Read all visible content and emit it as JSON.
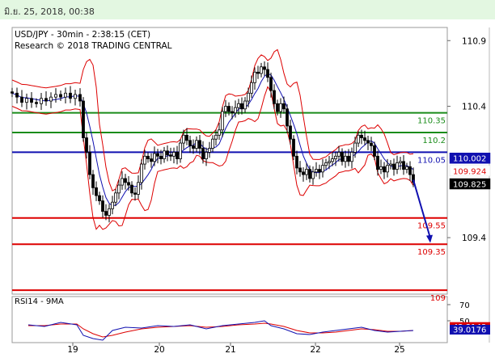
{
  "header": {
    "datetime": "มิ.ย. 25, 2018, 00:38"
  },
  "chart_data": {
    "type": "candlestick",
    "title": "USD/JPY - 30min - 2:38:15 (CET)",
    "subtitle": "Research © 2018 TRADING CENTRAL",
    "ylim": [
      108.97,
      111.0
    ],
    "yticks": [
      109.4,
      110.4,
      110.9
    ],
    "xticks": [
      "19",
      "20",
      "21",
      "22",
      "25"
    ],
    "levels": [
      {
        "value": 110.35,
        "label": "110.35",
        "color": "#1a8c1a"
      },
      {
        "value": 110.2,
        "label": "110.2",
        "color": "#1a8c1a"
      },
      {
        "value": 110.05,
        "label": "110.05",
        "color": "#1010b0"
      },
      {
        "value": 109.55,
        "label": "109.55",
        "color": "#dd0000"
      },
      {
        "value": 109.35,
        "label": "109.35",
        "color": "#dd0000"
      },
      {
        "value": 109.0,
        "label": "109",
        "color": "#dd0000"
      }
    ],
    "price_tags": [
      {
        "value": 110.002,
        "label": "110.002",
        "bg": "#1010b0",
        "fg": "#ffffff"
      },
      {
        "value": 109.924,
        "label": "109.924",
        "bg": "#ffffff",
        "fg": "#dd0000"
      },
      {
        "value": 109.825,
        "label": "109.825",
        "bg": "#000000",
        "fg": "#ffffff"
      }
    ],
    "close_series": [
      [
        0,
        110.5
      ],
      [
        6,
        110.47
      ],
      [
        12,
        110.43
      ],
      [
        18,
        110.46
      ],
      [
        24,
        110.43
      ],
      [
        30,
        110.42
      ],
      [
        36,
        110.46
      ],
      [
        42,
        110.44
      ],
      [
        48,
        110.47
      ],
      [
        54,
        110.49
      ],
      [
        60,
        110.47
      ],
      [
        66,
        110.5
      ],
      [
        72,
        110.46
      ],
      [
        78,
        110.49
      ],
      [
        84,
        110.44
      ],
      [
        88,
        110.16
      ],
      [
        92,
        110.05
      ],
      [
        96,
        109.88
      ],
      [
        100,
        109.78
      ],
      [
        104,
        109.72
      ],
      [
        108,
        109.68
      ],
      [
        112,
        109.6
      ],
      [
        116,
        109.57
      ],
      [
        120,
        109.62
      ],
      [
        124,
        109.67
      ],
      [
        128,
        109.74
      ],
      [
        132,
        109.8
      ],
      [
        136,
        109.85
      ],
      [
        140,
        109.82
      ],
      [
        144,
        109.8
      ],
      [
        148,
        109.74
      ],
      [
        152,
        109.73
      ],
      [
        156,
        109.82
      ],
      [
        160,
        109.96
      ],
      [
        164,
        110.02
      ],
      [
        168,
        110.0
      ],
      [
        172,
        109.98
      ],
      [
        176,
        110.04
      ],
      [
        180,
        110.02
      ],
      [
        184,
        110.0
      ],
      [
        188,
        110.06
      ],
      [
        192,
        110.03
      ],
      [
        196,
        110.02
      ],
      [
        200,
        110.05
      ],
      [
        204,
        110.0
      ],
      [
        208,
        110.12
      ],
      [
        212,
        110.18
      ],
      [
        216,
        110.14
      ],
      [
        220,
        110.1
      ],
      [
        224,
        110.08
      ],
      [
        228,
        110.14
      ],
      [
        232,
        110.08
      ],
      [
        236,
        110.0
      ],
      [
        240,
        110.05
      ],
      [
        244,
        110.08
      ],
      [
        248,
        110.15
      ],
      [
        252,
        110.18
      ],
      [
        256,
        110.22
      ],
      [
        260,
        110.36
      ],
      [
        264,
        110.4
      ],
      [
        268,
        110.36
      ],
      [
        272,
        110.35
      ],
      [
        276,
        110.39
      ],
      [
        280,
        110.42
      ],
      [
        284,
        110.38
      ],
      [
        288,
        110.44
      ],
      [
        292,
        110.5
      ],
      [
        296,
        110.58
      ],
      [
        300,
        110.66
      ],
      [
        304,
        110.65
      ],
      [
        308,
        110.7
      ],
      [
        312,
        110.68
      ],
      [
        316,
        110.62
      ],
      [
        320,
        110.52
      ],
      [
        324,
        110.42
      ],
      [
        328,
        110.36
      ],
      [
        332,
        110.42
      ],
      [
        336,
        110.38
      ],
      [
        340,
        110.25
      ],
      [
        344,
        110.15
      ],
      [
        348,
        110.02
      ],
      [
        352,
        109.93
      ],
      [
        356,
        109.9
      ],
      [
        360,
        109.88
      ],
      [
        364,
        109.92
      ],
      [
        368,
        109.85
      ],
      [
        372,
        109.9
      ],
      [
        376,
        109.92
      ],
      [
        380,
        109.9
      ],
      [
        384,
        109.95
      ],
      [
        388,
        109.97
      ],
      [
        392,
        109.98
      ],
      [
        396,
        110.0
      ],
      [
        400,
        110.02
      ],
      [
        404,
        110.05
      ],
      [
        408,
        109.98
      ],
      [
        412,
        110.02
      ],
      [
        416,
        109.98
      ],
      [
        420,
        110.05
      ],
      [
        424,
        110.12
      ],
      [
        428,
        110.18
      ],
      [
        432,
        110.16
      ],
      [
        436,
        110.14
      ],
      [
        440,
        110.12
      ],
      [
        444,
        110.1
      ],
      [
        448,
        110.02
      ],
      [
        452,
        109.92
      ],
      [
        456,
        109.94
      ],
      [
        460,
        109.9
      ],
      [
        464,
        109.95
      ],
      [
        468,
        109.96
      ],
      [
        472,
        109.92
      ],
      [
        476,
        109.97
      ],
      [
        480,
        109.98
      ],
      [
        484,
        109.92
      ],
      [
        488,
        109.94
      ],
      [
        492,
        109.88
      ],
      [
        496,
        109.82
      ]
    ],
    "forecast_arrow": {
      "from": [
        496,
        109.84
      ],
      "to": [
        517,
        109.36
      ]
    },
    "rsi": {
      "title": "RSI14 - 9MA",
      "ylim": [
        25,
        78
      ],
      "yticks": [
        50,
        70
      ],
      "tags": [
        {
          "value": 42.3143,
          "label": "42.3143",
          "bg": "#dd0000",
          "fg": "#ffffff"
        },
        {
          "value": 39.0176,
          "label": "39.0176",
          "bg": "#1010b0",
          "fg": "#ffffff"
        }
      ],
      "rsi_series": [
        [
          20,
          45
        ],
        [
          40,
          43
        ],
        [
          60,
          48
        ],
        [
          80,
          45
        ],
        [
          88,
          32
        ],
        [
          100,
          28
        ],
        [
          112,
          26
        ],
        [
          124,
          38
        ],
        [
          140,
          42
        ],
        [
          160,
          41
        ],
        [
          180,
          44
        ],
        [
          200,
          43
        ],
        [
          220,
          45
        ],
        [
          240,
          40
        ],
        [
          260,
          44
        ],
        [
          280,
          46
        ],
        [
          300,
          48
        ],
        [
          312,
          50
        ],
        [
          320,
          44
        ],
        [
          336,
          40
        ],
        [
          352,
          34
        ],
        [
          368,
          33
        ],
        [
          384,
          36
        ],
        [
          400,
          38
        ],
        [
          416,
          40
        ],
        [
          432,
          42
        ],
        [
          448,
          38
        ],
        [
          464,
          36
        ],
        [
          480,
          37
        ],
        [
          496,
          38
        ]
      ],
      "ma_series": [
        [
          20,
          44
        ],
        [
          40,
          44
        ],
        [
          60,
          46
        ],
        [
          80,
          46
        ],
        [
          88,
          40
        ],
        [
          100,
          34
        ],
        [
          112,
          30
        ],
        [
          124,
          32
        ],
        [
          140,
          36
        ],
        [
          160,
          40
        ],
        [
          180,
          42
        ],
        [
          200,
          43
        ],
        [
          220,
          44
        ],
        [
          240,
          42
        ],
        [
          260,
          43
        ],
        [
          280,
          45
        ],
        [
          300,
          46
        ],
        [
          312,
          47
        ],
        [
          320,
          46
        ],
        [
          336,
          43
        ],
        [
          352,
          38
        ],
        [
          368,
          35
        ],
        [
          384,
          35
        ],
        [
          400,
          36
        ],
        [
          416,
          38
        ],
        [
          432,
          40
        ],
        [
          448,
          39
        ],
        [
          464,
          37
        ],
        [
          480,
          37
        ],
        [
          496,
          38
        ]
      ]
    }
  }
}
